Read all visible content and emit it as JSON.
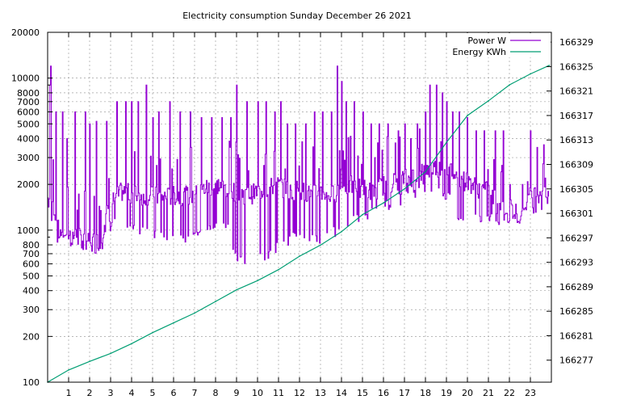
{
  "chart_data": {
    "type": "line",
    "title": "Electricity consumption Sunday December 26 2021",
    "x_ticks": [
      "1",
      "2",
      "3",
      "4",
      "5",
      "6",
      "7",
      "8",
      "9",
      "10",
      "11",
      "12",
      "13",
      "14",
      "15",
      "16",
      "17",
      "18",
      "19",
      "20",
      "21",
      "22",
      "23"
    ],
    "xlim": [
      0,
      24
    ],
    "y_left": {
      "scale": "log",
      "range": [
        100,
        20000
      ],
      "ticks": [
        {
          "v": 100,
          "label": "100"
        },
        {
          "v": 200,
          "label": "200"
        },
        {
          "v": 300,
          "label": "300"
        },
        {
          "v": 400,
          "label": "400"
        },
        {
          "v": 500,
          "label": "500"
        },
        {
          "v": 600,
          "label": "600"
        },
        {
          "v": 700,
          "label": "700"
        },
        {
          "v": 800,
          "label": "800"
        },
        {
          "v": 1000,
          "label": "1000"
        },
        {
          "v": 2000,
          "label": "2000"
        },
        {
          "v": 3000,
          "label": "3000"
        },
        {
          "v": 4000,
          "label": "4000"
        },
        {
          "v": 5000,
          "label": "5000"
        },
        {
          "v": 6000,
          "label": "6000"
        },
        {
          "v": 7000,
          "label": "7000"
        },
        {
          "v": 8000,
          "label": "8000"
        },
        {
          "v": 10000,
          "label": "10000"
        },
        {
          "v": 20000,
          "label": "20000"
        }
      ]
    },
    "y_right": {
      "scale": "linear",
      "range": [
        166273.4,
        166330.6
      ],
      "ticks": [
        "166277",
        "166281",
        "166285",
        "166289",
        "166293",
        "166297",
        "166301",
        "166305",
        "166309",
        "166313",
        "166317",
        "166321",
        "166325",
        "166329"
      ]
    },
    "grid": true,
    "legend_position": "top-right",
    "series": [
      {
        "name": "Power W",
        "color": "#9400d3",
        "axis": "left",
        "style": "spiky",
        "x": [
          0.0,
          0.2,
          0.5,
          1.0,
          1.5,
          2.0,
          2.5,
          3.0,
          3.5,
          4.0,
          4.5,
          5.0,
          5.5,
          6.0,
          6.5,
          7.0,
          7.5,
          8.0,
          8.5,
          9.0,
          9.5,
          10.0,
          10.5,
          11.0,
          11.5,
          12.0,
          12.5,
          13.0,
          13.5,
          14.0,
          14.5,
          15.0,
          15.5,
          16.0,
          16.5,
          17.0,
          17.5,
          18.0,
          18.5,
          19.0,
          19.5,
          20.0,
          20.5,
          21.0,
          21.5,
          22.0,
          22.5,
          23.0,
          23.5,
          23.9
        ],
        "base": [
          1600,
          1600,
          1000,
          950,
          900,
          850,
          850,
          1500,
          1800,
          1750,
          1700,
          1700,
          1650,
          1700,
          1700,
          1700,
          1900,
          2000,
          1900,
          1800,
          1700,
          1800,
          1900,
          2000,
          1800,
          1900,
          1700,
          1800,
          1700,
          1900,
          2000,
          1900,
          1800,
          2000,
          2100,
          2200,
          2300,
          2500,
          2600,
          2700,
          2200,
          2100,
          1900,
          1800,
          1500,
          1400,
          1300,
          1700,
          1800,
          1800
        ],
        "low": [
          1600,
          1000,
          900,
          850,
          750,
          780,
          780,
          1100,
          1100,
          1050,
          1000,
          950,
          920,
          950,
          920,
          1000,
          1000,
          1050,
          1050,
          700,
          600,
          650,
          700,
          800,
          850,
          1000,
          900,
          850,
          950,
          1100,
          1150,
          1200,
          1300,
          1400,
          1500,
          1700,
          1800,
          1900,
          1800,
          1700,
          1300,
          1200,
          1200,
          1200,
          1200,
          1200,
          1200,
          1400,
          1500,
          1500
        ],
        "peaks": [
          [
            0.1,
            9000
          ],
          [
            0.15,
            12000
          ],
          [
            0.4,
            6000
          ],
          [
            0.7,
            6000
          ],
          [
            0.9,
            4000
          ],
          [
            1.3,
            6000
          ],
          [
            1.8,
            6000
          ],
          [
            2.0,
            5000
          ],
          [
            2.3,
            5200
          ],
          [
            2.8,
            5200
          ],
          [
            3.3,
            7000
          ],
          [
            3.7,
            7000
          ],
          [
            4.0,
            7000
          ],
          [
            4.3,
            7000
          ],
          [
            4.7,
            9000
          ],
          [
            5.0,
            5500
          ],
          [
            5.3,
            6000
          ],
          [
            5.8,
            7000
          ],
          [
            6.3,
            6000
          ],
          [
            6.8,
            6000
          ],
          [
            7.3,
            5500
          ],
          [
            7.8,
            5500
          ],
          [
            8.3,
            5500
          ],
          [
            8.7,
            5500
          ],
          [
            9.0,
            9000
          ],
          [
            9.5,
            7000
          ],
          [
            10.0,
            7000
          ],
          [
            10.4,
            7000
          ],
          [
            10.8,
            6000
          ],
          [
            11.1,
            7000
          ],
          [
            11.4,
            5000
          ],
          [
            11.8,
            5000
          ],
          [
            12.3,
            5000
          ],
          [
            12.7,
            6000
          ],
          [
            13.1,
            6000
          ],
          [
            13.5,
            6000
          ],
          [
            13.8,
            12000
          ],
          [
            14.0,
            9500
          ],
          [
            14.2,
            7000
          ],
          [
            14.6,
            7000
          ],
          [
            15.0,
            6000
          ],
          [
            15.4,
            5000
          ],
          [
            15.8,
            5000
          ],
          [
            16.2,
            5000
          ],
          [
            16.7,
            4500
          ],
          [
            17.0,
            5000
          ],
          [
            17.3,
            4000
          ],
          [
            17.6,
            5000
          ],
          [
            18.0,
            6000
          ],
          [
            18.2,
            9000
          ],
          [
            18.5,
            9000
          ],
          [
            18.8,
            8000
          ],
          [
            19.0,
            7000
          ],
          [
            19.3,
            6000
          ],
          [
            19.6,
            6000
          ],
          [
            20.0,
            5500
          ],
          [
            20.4,
            4500
          ],
          [
            20.8,
            4500
          ],
          [
            21.3,
            4500
          ],
          [
            21.7,
            4500
          ],
          [
            22.0,
            2000
          ],
          [
            22.6,
            2000
          ],
          [
            23.0,
            4500
          ],
          [
            23.3,
            3500
          ],
          [
            23.7,
            2200
          ]
        ]
      },
      {
        "name": "Energy KWh",
        "color": "#009e73",
        "axis": "right",
        "x": [
          0,
          1,
          2,
          3,
          4,
          5,
          6,
          7,
          8,
          9,
          10,
          11,
          12,
          13,
          14,
          15,
          16,
          17,
          18,
          19,
          20,
          21,
          22,
          23,
          23.9
        ],
        "y": [
          166273.4,
          166275.4,
          166276.8,
          166278.1,
          166279.7,
          166281.5,
          166283.1,
          166284.7,
          166286.6,
          166288.5,
          166290.0,
          166291.8,
          166294.0,
          166295.8,
          166298.0,
          166300.8,
          166302.7,
          166305.0,
          166307.8,
          166312.6,
          166317.0,
          166319.4,
          166322.0,
          166323.8,
          166325.2
        ]
      }
    ]
  }
}
